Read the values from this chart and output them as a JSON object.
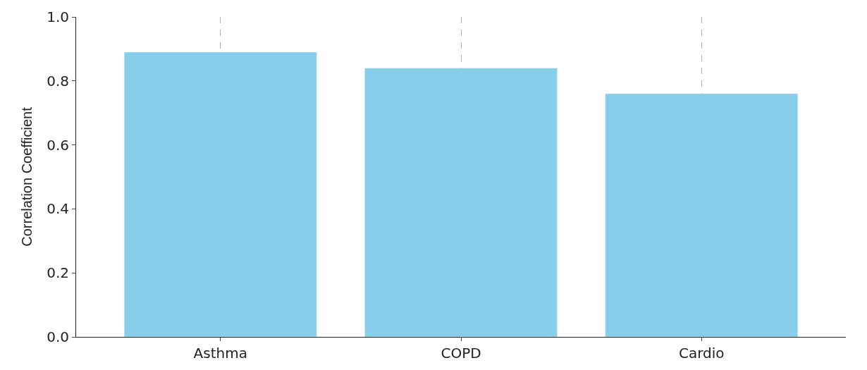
{
  "chart_data": {
    "type": "bar",
    "ylabel": "Correlation Coefficient",
    "categories": [
      "Asthma",
      "COPD",
      "Cardio"
    ],
    "values": [
      0.89,
      0.84,
      0.76
    ],
    "color": "#87ceeb",
    "ylim": [
      0,
      1.0
    ],
    "yticks": [
      {
        "value": 0,
        "label": "0.0"
      },
      {
        "value": 0.2,
        "label": "0.2"
      },
      {
        "value": 0.4,
        "label": "0.4"
      },
      {
        "value": 0.6,
        "label": "0.6"
      },
      {
        "value": 0.8,
        "label": "0.8"
      },
      {
        "value": 1.0,
        "label": "1.0"
      }
    ],
    "grid": "x"
  }
}
